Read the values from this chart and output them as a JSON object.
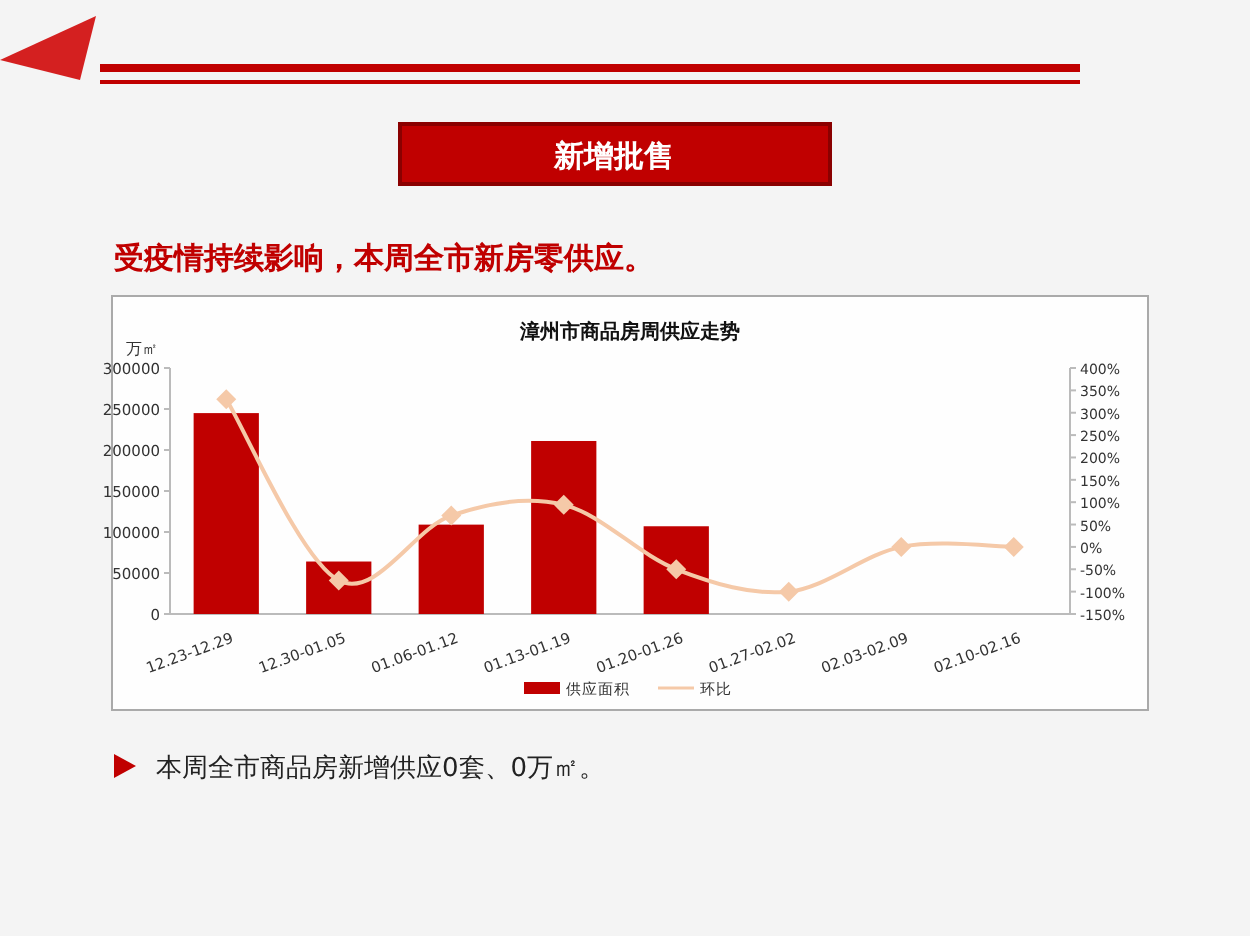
{
  "chart_data": {
    "type": "bar",
    "title": "漳州市商品房周供应走势",
    "subtitle": "受疫情持续影响，本周全市新房零供应。",
    "ylabel": "万㎡",
    "annotations": [
      "新增批售",
      "本周全市商品房新增供应0套、0万㎡。"
    ],
    "categories": [
      "12.23-12.29",
      "12.30-01.05",
      "01.06-01.12",
      "01.13-01.19",
      "01.20-01.26",
      "01.27-02.02",
      "02.03-02.09",
      "02.10-02.16"
    ],
    "series": [
      {
        "name": "供应面积",
        "color": "#c00000",
        "values": [
          245000,
          64000,
          109000,
          211000,
          107000,
          0,
          0,
          0
        ]
      },
      {
        "name": "环比",
        "type": "line",
        "axis": "y2",
        "color": "#f5c9a8",
        "marker": "diamond",
        "values": [
          330,
          -75,
          70,
          94,
          -50,
          -100,
          0,
          0
        ]
      }
    ],
    "ylim": [
      0,
      300000
    ],
    "yticks": [
      0,
      50000,
      100000,
      150000,
      200000,
      250000,
      300000
    ],
    "y2lim": [
      -150,
      400
    ],
    "y2ticks": [
      {
        "value": -150,
        "label": "-150%"
      },
      {
        "value": -100,
        "label": "-100%"
      },
      {
        "value": -50,
        "label": "-50%"
      },
      {
        "value": 0,
        "label": "0%"
      },
      {
        "value": 50,
        "label": "50%"
      },
      {
        "value": 100,
        "label": "100%"
      },
      {
        "value": 150,
        "label": "150%"
      },
      {
        "value": 200,
        "label": "200%"
      },
      {
        "value": 250,
        "label": "250%"
      },
      {
        "value": 300,
        "label": "300%"
      },
      {
        "value": 350,
        "label": "350%"
      },
      {
        "value": 400,
        "label": "400%"
      }
    ],
    "legend": "bottom",
    "grid": false
  }
}
